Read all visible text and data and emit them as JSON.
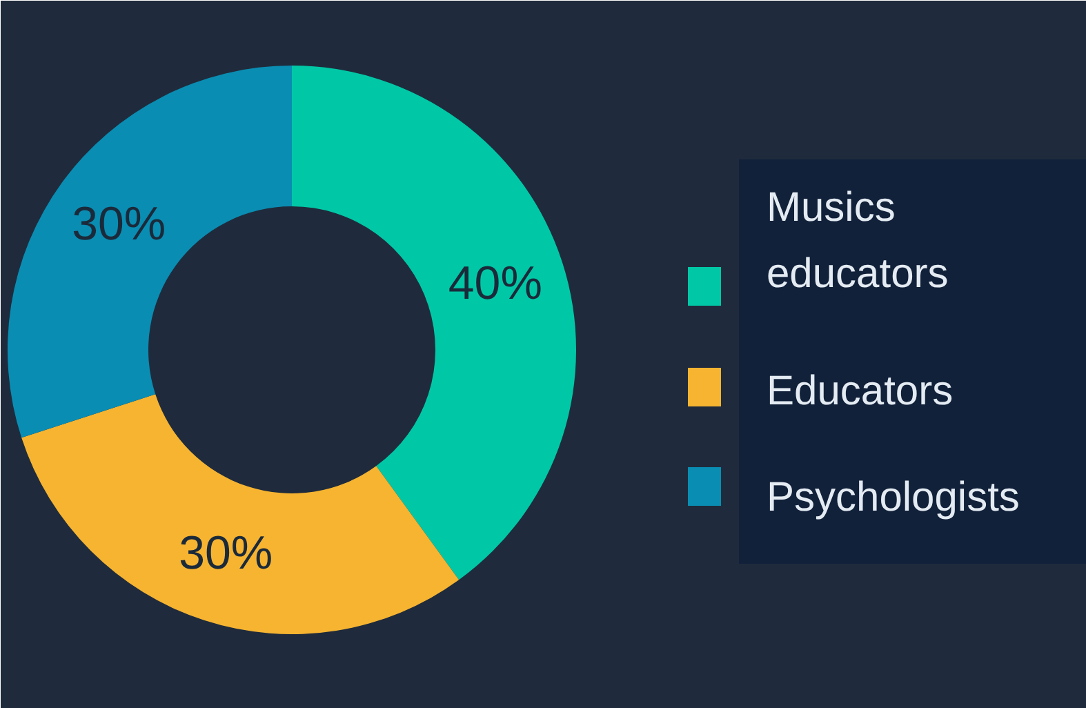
{
  "chart_data": {
    "type": "donut",
    "categories": [
      "Musics educators",
      "Educators",
      "Psychologists"
    ],
    "values": [
      40,
      30,
      30
    ],
    "colors": [
      "#00c8a6",
      "#f6b431",
      "#0a8db3"
    ],
    "value_labels": [
      "40%",
      "30%",
      "30%"
    ],
    "legend": "right"
  }
}
